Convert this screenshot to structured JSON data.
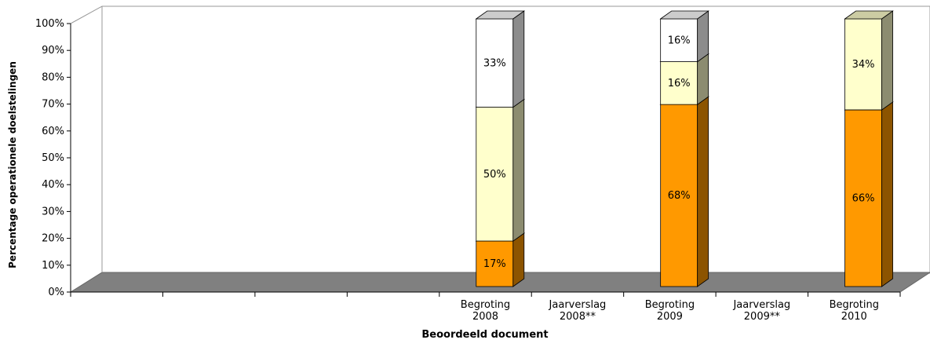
{
  "chart_data": {
    "type": "bar3d-stacked",
    "ylabel": "Percentage operationele doelstelingen",
    "xlabel": "Beoordeeld document",
    "categories": [
      null,
      null,
      null,
      null,
      "Begroting 2008",
      "Jaarverslag 2008**",
      "Begroting 2009",
      "Jaarverslag 2009**",
      "Begroting 2010"
    ],
    "series": [
      {
        "color": "#FF9900",
        "values": [
          null,
          null,
          null,
          null,
          17,
          null,
          68,
          null,
          66
        ],
        "value_labels": [
          null,
          null,
          null,
          null,
          "17%",
          null,
          "68%",
          null,
          "66%"
        ]
      },
      {
        "color": "#FFFFCC",
        "values": [
          null,
          null,
          null,
          null,
          50,
          null,
          16,
          null,
          34
        ],
        "value_labels": [
          null,
          null,
          null,
          null,
          "50%",
          null,
          "16%",
          null,
          "34%"
        ]
      },
      {
        "color": "#FFFFFF",
        "values": [
          null,
          null,
          null,
          null,
          33,
          null,
          16,
          null,
          null
        ],
        "value_labels": [
          null,
          null,
          null,
          null,
          "33%",
          null,
          "16%",
          null,
          null
        ]
      }
    ],
    "ylim": [
      0,
      100
    ],
    "yticks": [
      {
        "value": 0,
        "label": "0%"
      },
      {
        "value": 10,
        "label": "10%"
      },
      {
        "value": 20,
        "label": "20%"
      },
      {
        "value": 30,
        "label": "30%"
      },
      {
        "value": 40,
        "label": "40%"
      },
      {
        "value": 50,
        "label": "50%"
      },
      {
        "value": 60,
        "label": "60%"
      },
      {
        "value": 70,
        "label": "70%"
      },
      {
        "value": 80,
        "label": "80%"
      },
      {
        "value": 90,
        "label": "90%"
      },
      {
        "value": 100,
        "label": "100%"
      }
    ]
  }
}
